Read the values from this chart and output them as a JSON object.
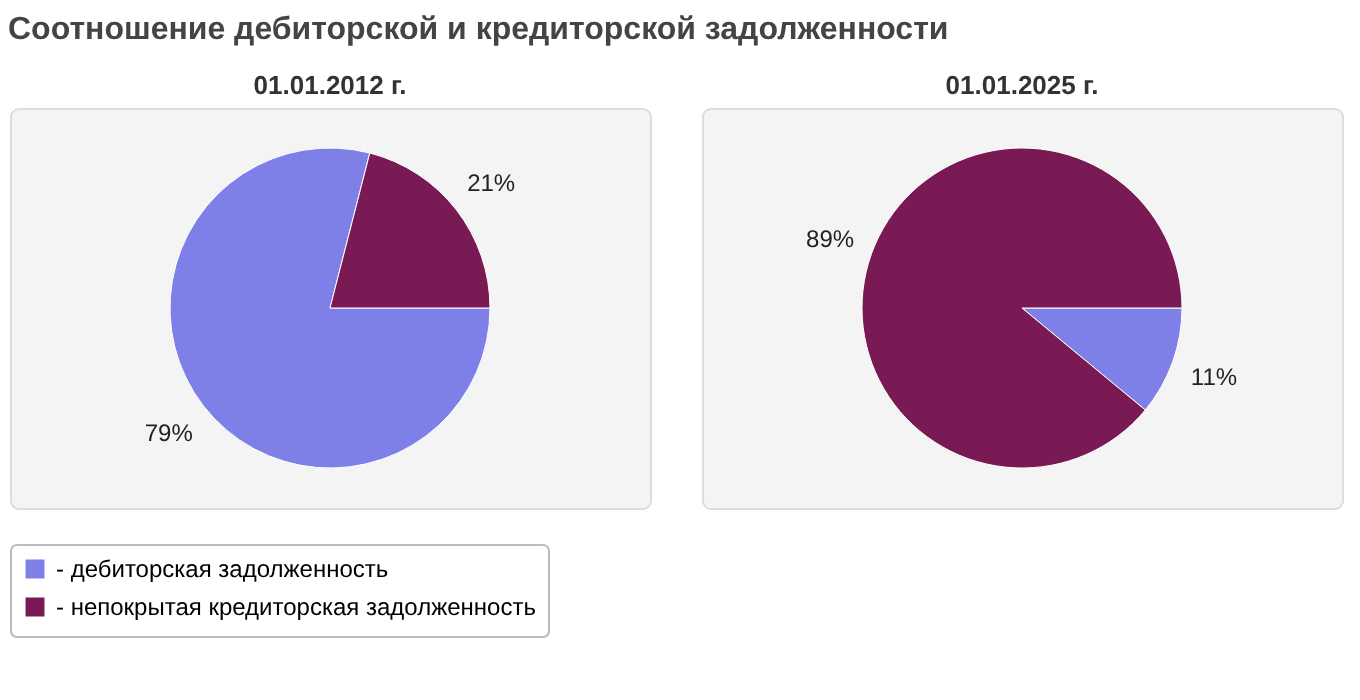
{
  "chart_data": [
    {
      "type": "pie",
      "title": "Соотношение дебиторской и кредиторской задолженности",
      "subtitle": "01.01.2012 г.",
      "categories": [
        "- дебиторская задолженность",
        "- непокрытая кредиторская задолженность"
      ],
      "values": [
        79,
        21
      ],
      "value_labels": [
        "79%",
        "21%"
      ],
      "colors": [
        "#7f7fe8",
        "#7a1a55"
      ],
      "legend": "bottom"
    },
    {
      "type": "pie",
      "subtitle": "01.01.2025 г.",
      "categories": [
        null,
        null
      ],
      "values": [
        11,
        89
      ],
      "value_labels": [
        "11%",
        "89%"
      ],
      "colors": [
        "#7f7fe8",
        "#7a1a55"
      ]
    }
  ]
}
